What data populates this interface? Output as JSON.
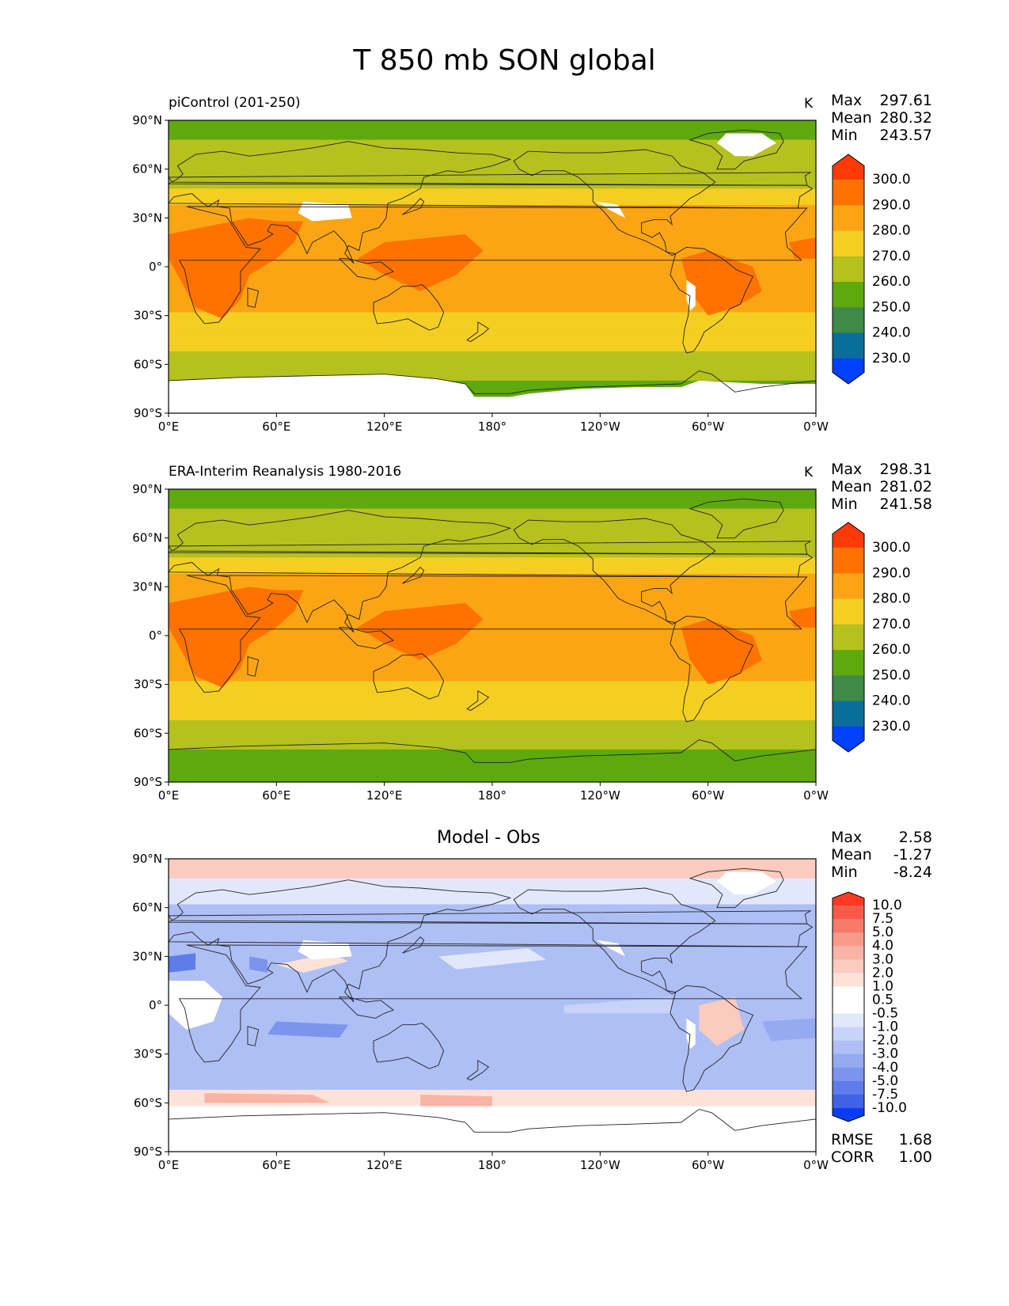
{
  "figure": {
    "title": "T 850 mb SON global"
  },
  "axes": {
    "lat_ticks": [
      "90°N",
      "60°N",
      "30°N",
      "0°",
      "30°S",
      "60°S",
      "90°S"
    ],
    "lon_ticks": [
      "0°E",
      "60°E",
      "120°E",
      "180°",
      "120°W",
      "60°W",
      "0°W"
    ]
  },
  "panels": [
    {
      "left_label": "piControl (201-250)",
      "center_label": "",
      "units": "K",
      "stats": [
        {
          "label": "Max",
          "value": "297.61"
        },
        {
          "label": "Mean",
          "value": "280.32"
        },
        {
          "label": "Min",
          "value": "243.57"
        }
      ],
      "colorbar": {
        "labels": [
          "300.0",
          "290.0",
          "280.0",
          "270.0",
          "260.0",
          "250.0",
          "240.0",
          "230.0"
        ],
        "colors": [
          "#ff3a08",
          "#ff7200",
          "#fba514",
          "#f4cf22",
          "#b5c11f",
          "#5ea90e",
          "#3d8b47",
          "#0b6e9a",
          "#0040ff"
        ]
      },
      "mask": "model"
    },
    {
      "left_label": "ERA-Interim Reanalysis 1980-2016",
      "center_label": "",
      "units": "K",
      "stats": [
        {
          "label": "Max",
          "value": "298.31"
        },
        {
          "label": "Mean",
          "value": "281.02"
        },
        {
          "label": "Min",
          "value": "241.58"
        }
      ],
      "colorbar": {
        "labels": [
          "300.0",
          "290.0",
          "280.0",
          "270.0",
          "260.0",
          "250.0",
          "240.0",
          "230.0"
        ],
        "colors": [
          "#ff3a08",
          "#ff7200",
          "#fba514",
          "#f4cf22",
          "#b5c11f",
          "#5ea90e",
          "#3d8b47",
          "#0b6e9a",
          "#0040ff"
        ]
      },
      "mask": "obs"
    },
    {
      "left_label": "",
      "center_label": "Model - Obs",
      "units": "",
      "stats": [
        {
          "label": "Max",
          "value": "2.58"
        },
        {
          "label": "Mean",
          "value": "-1.27"
        },
        {
          "label": "Min",
          "value": "-8.24"
        }
      ],
      "extra_stats": [
        {
          "label": "RMSE",
          "value": "1.68"
        },
        {
          "label": "CORR",
          "value": "1.00"
        }
      ],
      "colorbar": {
        "labels": [
          "10.0",
          "7.5",
          "5.0",
          "4.0",
          "3.0",
          "2.0",
          "1.0",
          "0.5",
          "-0.5",
          "-1.0",
          "-2.0",
          "-3.0",
          "-4.0",
          "-5.0",
          "-7.5",
          "-10.0"
        ],
        "colors": [
          "#ff3a20",
          "#f85a4a",
          "#f77a6a",
          "#f89a88",
          "#f9b4a6",
          "#fbcbbf",
          "#fde2da",
          "#ffffff",
          "#ffffff",
          "#e2e8fb",
          "#c7d3f8",
          "#aebff5",
          "#94aaf1",
          "#7b95ee",
          "#5f7de9",
          "#3f62e6",
          "#0b3cf5"
        ]
      },
      "mask": "diff"
    }
  ]
}
